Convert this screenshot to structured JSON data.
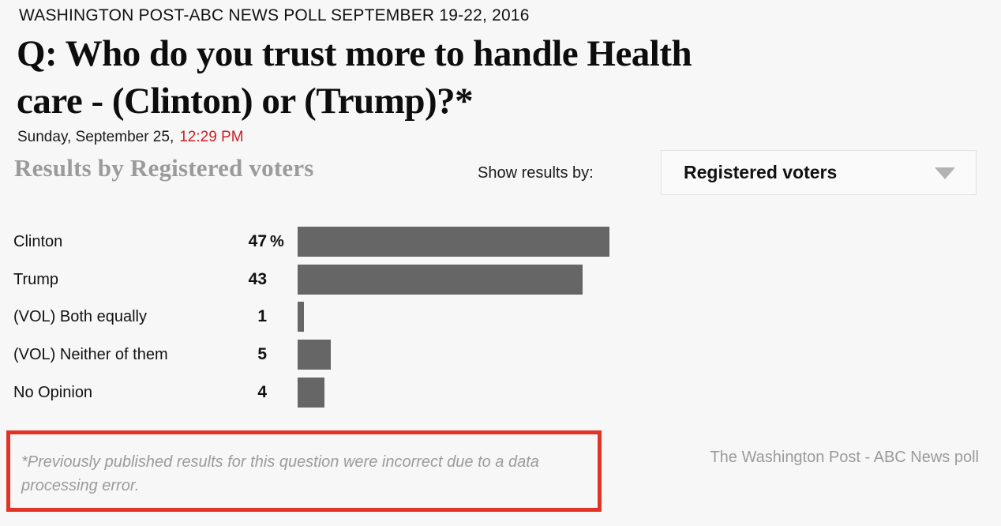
{
  "header": {
    "kicker": "WASHINGTON POST-ABC NEWS POLL SEPTEMBER 19-22, 2016",
    "question_full": "Q: Who do you trust more to handle Health care - (Clinton) or (Trump)?*",
    "question_lines": [
      "Q: Who do you trust more to handle Health",
      "care - (Clinton) or (Trump)?*"
    ],
    "date_prefix": "Sunday, September 25,",
    "time": "12:29 PM"
  },
  "results": {
    "heading": "Results by Registered voters",
    "filter_label": "Show results by:",
    "filter_value": "Registered voters"
  },
  "chart_data": {
    "type": "bar",
    "orientation": "horizontal",
    "title": "Results by Registered voters",
    "categories": [
      "Clinton",
      "Trump",
      "(VOL) Both equally",
      "(VOL) Neither of them",
      "No Opinion"
    ],
    "values": [
      47,
      43,
      1,
      5,
      4
    ],
    "value_suffixes": [
      "%",
      "",
      "",
      "",
      ""
    ],
    "unit": "percent",
    "xlim": [
      0,
      100
    ],
    "grid": false,
    "legend": false,
    "bar_color": "#666666"
  },
  "footnote": {
    "text": "*Previously published results for this question were incorrect due to a data processing error."
  },
  "attribution": "The Washington Post - ABC News poll",
  "colors": {
    "page_bg": "#f7f7f7",
    "bar": "#666666",
    "time_red": "#cc2127",
    "highlight_box_red": "#e23327",
    "muted_gray": "#9b9b9b",
    "dropdown_border": "#e2e2e2"
  }
}
